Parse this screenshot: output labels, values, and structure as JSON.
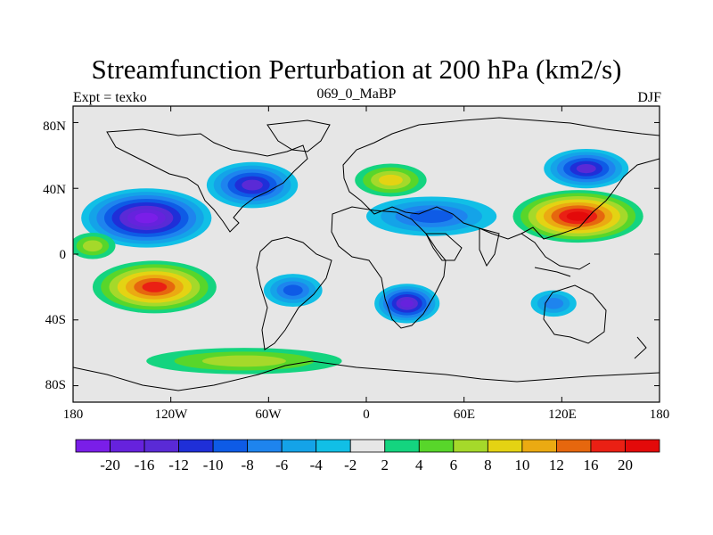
{
  "title": "Streamfunction Perturbation at 200 hPa (km2/s)",
  "left_label": "Expt = texko",
  "center_label": "069_0_MaBP",
  "right_label": "DJF",
  "y_ticks": [
    "80N",
    "40N",
    "0",
    "40S",
    "80S"
  ],
  "x_ticks": [
    "180",
    "120W",
    "60W",
    "0",
    "60E",
    "120E",
    "180"
  ],
  "colorbar": {
    "labels": [
      "-20",
      "-16",
      "-12",
      "-10",
      "-8",
      "-6",
      "-4",
      "-2",
      "2",
      "4",
      "6",
      "8",
      "10",
      "12",
      "16",
      "20"
    ],
    "colors": [
      "#7a1ee8",
      "#6622dd",
      "#5a2ad6",
      "#1f2fd8",
      "#0e5be6",
      "#1e84ee",
      "#14a3e8",
      "#11bfe6",
      "#e6e6e6",
      "#14d47f",
      "#58d62a",
      "#a5d92a",
      "#e4d313",
      "#ebaa12",
      "#e6670e",
      "#ea2014",
      "#e30a0a"
    ]
  },
  "map_data": {
    "type": "filled-contour map",
    "variable": "Streamfunction Perturbation",
    "level": "200 hPa",
    "units": "km2/s",
    "lon_range": [
      -180,
      180
    ],
    "lat_range": [
      -90,
      90
    ],
    "features": [
      {
        "name": "north-pacific-low",
        "lon": -135,
        "lat": 22,
        "value": -20
      },
      {
        "name": "central-pacific-high",
        "lon": -168,
        "lat": 5,
        "value": 6
      },
      {
        "name": "south-pacific-high",
        "lon": -130,
        "lat": -20,
        "value": 16
      },
      {
        "name": "north-america-low",
        "lon": -70,
        "lat": 42,
        "value": -12
      },
      {
        "name": "south-america-low",
        "lon": -45,
        "lat": -22,
        "value": -8
      },
      {
        "name": "atlantic-low",
        "lon": 40,
        "lat": 23,
        "value": -8
      },
      {
        "name": "europe-high",
        "lon": 15,
        "lat": 45,
        "value": 8
      },
      {
        "name": "africa-low",
        "lon": 25,
        "lat": -30,
        "value": -16
      },
      {
        "name": "asia-high",
        "lon": 130,
        "lat": 23,
        "value": 20
      },
      {
        "name": "northeast-asia-low",
        "lon": 135,
        "lat": 52,
        "value": -12
      },
      {
        "name": "australia-low",
        "lon": 115,
        "lat": -30,
        "value": -6
      },
      {
        "name": "southern-ocean-high",
        "lon": -75,
        "lat": -65,
        "value": 6
      }
    ]
  }
}
